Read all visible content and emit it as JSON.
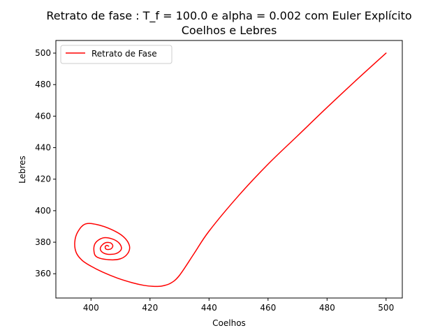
{
  "chart_data": {
    "type": "line",
    "title": "Retrato de fase : T_f = 100.0 e alpha = 0.002 com Euler Explícito",
    "subtitle": "Coelhos e Lebres",
    "xlabel": "Coelhos",
    "ylabel": "Lebres",
    "xlim": [
      388.1,
      505.5
    ],
    "ylim": [
      424.6,
      425.0
    ],
    "xlim_note": "",
    "x_ticks": [
      400,
      420,
      440,
      460,
      480,
      500
    ],
    "y_ticks": [
      360,
      380,
      400,
      420,
      440,
      460,
      480,
      500
    ],
    "x_tick_labels": [
      "400",
      "420",
      "440",
      "460",
      "480",
      "500"
    ],
    "y_tick_labels": [
      "360",
      "380",
      "400",
      "420",
      "440",
      "460",
      "480",
      "500"
    ],
    "grid": false,
    "legend_position": "upper-left",
    "series": [
      {
        "name": "Retrato de Fase",
        "color": "#ff0000",
        "x": [
          500,
          490,
          480,
          470,
          460,
          450,
          440,
          435,
          430,
          427,
          424,
          421,
          418,
          414,
          409,
          404,
          400,
          397,
          395,
          394.5,
          395.5,
          398,
          402,
          407,
          411,
          413,
          412.5,
          410,
          406,
          402,
          401,
          401.5,
          404,
          407,
          409.5,
          410.3,
          408.5,
          405.5,
          403.5,
          403.3,
          404.8,
          406.6,
          407.4,
          406.7,
          405.2,
          404.8,
          405.3,
          406
        ],
        "y": [
          500,
          483,
          465.5,
          447.5,
          429.5,
          409.5,
          387,
          373,
          359,
          354,
          352.2,
          352,
          352.6,
          354.3,
          357.2,
          361,
          364.8,
          368.5,
          373.4,
          380,
          386.5,
          391.5,
          391.2,
          388,
          383.5,
          378,
          373,
          369.5,
          368.9,
          370.6,
          374.5,
          379.5,
          382.7,
          382.2,
          379.5,
          375.7,
          372.8,
          372.4,
          374.2,
          377,
          379.6,
          379.6,
          377.7,
          375.7,
          375.5,
          377,
          378,
          377.5
        ]
      }
    ]
  }
}
